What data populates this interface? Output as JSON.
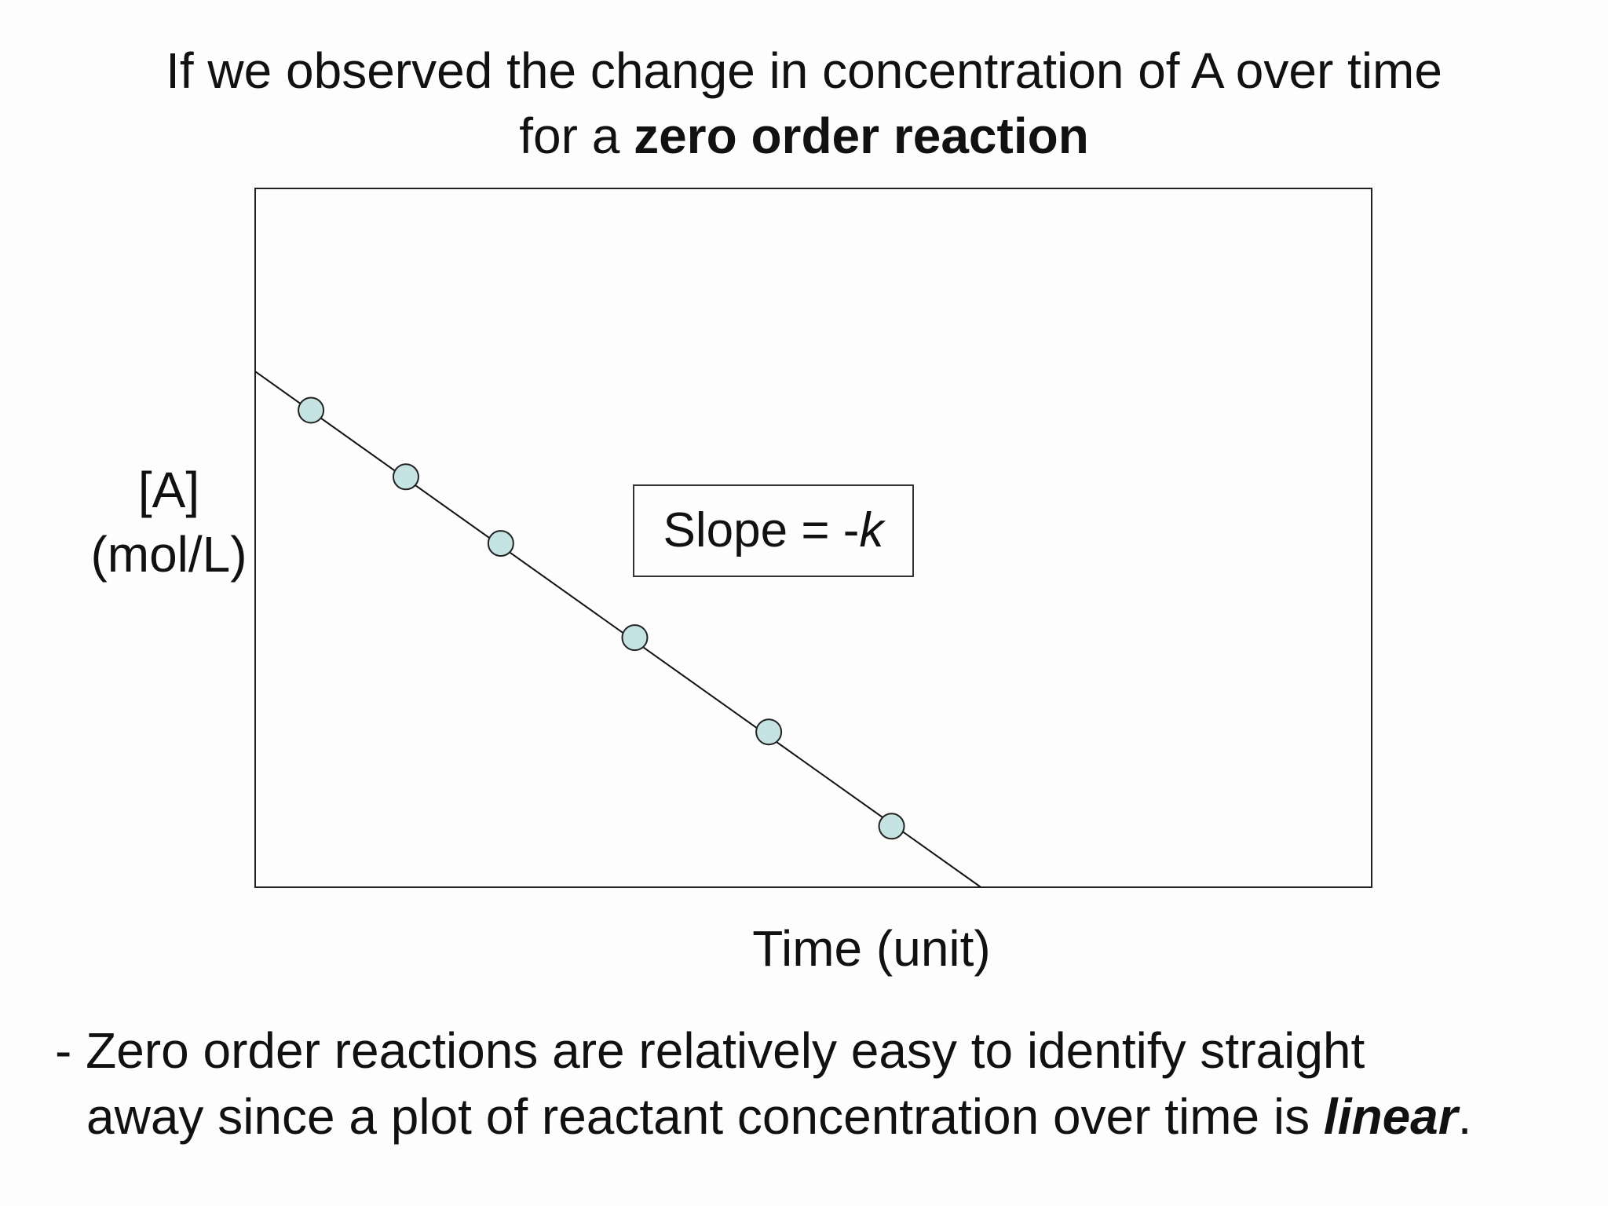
{
  "title": {
    "line1": "If we observed the change in concentration of A over time",
    "line2_prefix": "for a ",
    "line2_bold": "zero order reaction"
  },
  "chart_data": {
    "type": "scatter",
    "ylabel_line1": "[A]",
    "ylabel_line2": "(mol/L)",
    "xlabel": "Time (unit)",
    "annotation_prefix": "Slope = -",
    "annotation_italic": "k",
    "points": [
      {
        "x": 0.5,
        "y": 6.3
      },
      {
        "x": 1.35,
        "y": 5.7
      },
      {
        "x": 2.2,
        "y": 5.1
      },
      {
        "x": 3.4,
        "y": 4.25
      },
      {
        "x": 4.6,
        "y": 3.4
      },
      {
        "x": 5.7,
        "y": 2.55
      }
    ],
    "trendline": {
      "x_start": 0,
      "y_start": 6.65,
      "x_end": 6.5,
      "y_end": 2.0
    },
    "xlim": [
      0,
      10
    ],
    "ylim": [
      2,
      8.3
    ],
    "grid": false,
    "legend": "none",
    "marker_color": "#c5e3e3",
    "line_color": "#111111"
  },
  "note": {
    "line1": "- Zero order reactions are relatively easy to identify straight",
    "line2_prefix": "away since a plot of reactant concentration over time is ",
    "line2_bold_italic": "linear",
    "line2_suffix": "."
  }
}
